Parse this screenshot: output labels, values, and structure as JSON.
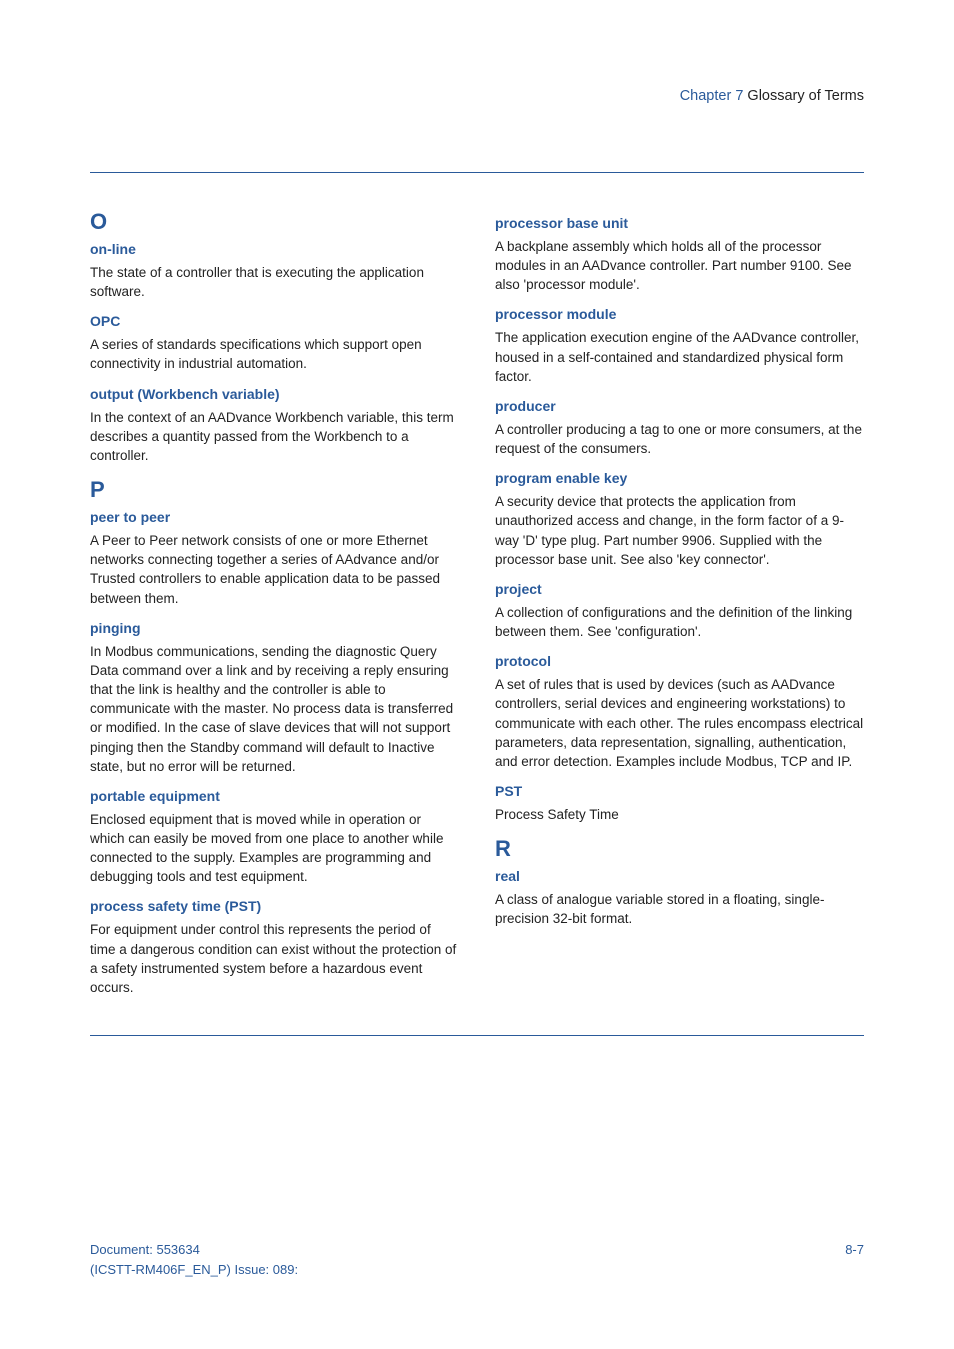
{
  "colors": {
    "accent": "#2a5a9a",
    "text": "#222222",
    "background": "#ffffff"
  },
  "header": {
    "chapter_label": "Chapter 7",
    "chapter_title": " Glossary of Terms"
  },
  "left_column": [
    {
      "type": "letter",
      "text": "O"
    },
    {
      "type": "term",
      "text": "on-line"
    },
    {
      "type": "defn",
      "text": "The state of a controller that is executing the application software."
    },
    {
      "type": "term",
      "text": "OPC"
    },
    {
      "type": "defn",
      "text": "A series of standards specifications which support open connectivity in industrial automation."
    },
    {
      "type": "term",
      "text": "output (Workbench variable)"
    },
    {
      "type": "defn",
      "text": "In the context of an AADvance Workbench variable, this term describes a quantity passed from the Workbench to a controller."
    },
    {
      "type": "letter",
      "text": "P"
    },
    {
      "type": "term",
      "text": "peer to peer"
    },
    {
      "type": "defn",
      "text": "A Peer to Peer network consists of one or more Ethernet networks connecting together a series of AAdvance and/or Trusted controllers to enable application data to be passed between them."
    },
    {
      "type": "term",
      "text": "pinging"
    },
    {
      "type": "defn",
      "text": "In Modbus communications, sending the diagnostic Query Data command over a link and by receiving a reply ensuring that the link is healthy and the controller is able to communicate with the master. No process data is transferred or modified. In the case of slave devices that will not support pinging then the Standby command will default to Inactive state, but no error will be returned."
    },
    {
      "type": "term",
      "text": "portable equipment"
    },
    {
      "type": "defn",
      "text": "Enclosed equipment that is moved while in operation or which can easily be moved from one place to another while connected to the supply. Examples are programming and debugging tools and test equipment."
    },
    {
      "type": "term",
      "text": "process safety time (PST)"
    },
    {
      "type": "defn",
      "text": " For equipment under control this represents the period of time a dangerous condition can exist without the protection of a safety instrumented system before a hazardous event occurs."
    }
  ],
  "right_column": [
    {
      "type": "term",
      "text": "processor base unit"
    },
    {
      "type": "defn",
      "text": "A backplane assembly which holds all of the processor modules in an AADvance controller. Part number 9100. See also 'processor module'."
    },
    {
      "type": "term",
      "text": "processor module"
    },
    {
      "type": "defn",
      "text": "The application execution engine of the AADvance controller, housed in a self-contained and standardized physical form factor."
    },
    {
      "type": "term",
      "text": "producer"
    },
    {
      "type": "defn",
      "text": "A controller producing a tag to one or more consumers, at the request of the consumers."
    },
    {
      "type": "term",
      "text": "program enable key"
    },
    {
      "type": "defn",
      "text": "A security device that protects the application from unauthorized access and change, in the form factor of a 9-way 'D' type plug. Part number 9906. Supplied with the processor base unit. See also 'key connector'."
    },
    {
      "type": "term",
      "text": "project"
    },
    {
      "type": "defn",
      "text": "A collection of configurations and the definition of the linking between them. See 'configuration'."
    },
    {
      "type": "term",
      "text": "protocol"
    },
    {
      "type": "defn",
      "text": "A set of rules that is used by devices (such as AADvance controllers, serial devices and engineering workstations) to communicate with each other. The rules encompass electrical parameters, data representation, signalling, authentication, and error detection. Examples include Modbus, TCP and IP."
    },
    {
      "type": "term",
      "text": "PST"
    },
    {
      "type": "defn",
      "text": "Process Safety Time"
    },
    {
      "type": "letter",
      "text": "R"
    },
    {
      "type": "term",
      "text": "real"
    },
    {
      "type": "defn",
      "text": "A class of analogue variable stored in a floating, single-precision 32-bit format."
    }
  ],
  "footer": {
    "doc_number": "Document: 553634",
    "doc_issue": "(ICSTT-RM406F_EN_P) Issue: 089:",
    "page": "8-7"
  }
}
